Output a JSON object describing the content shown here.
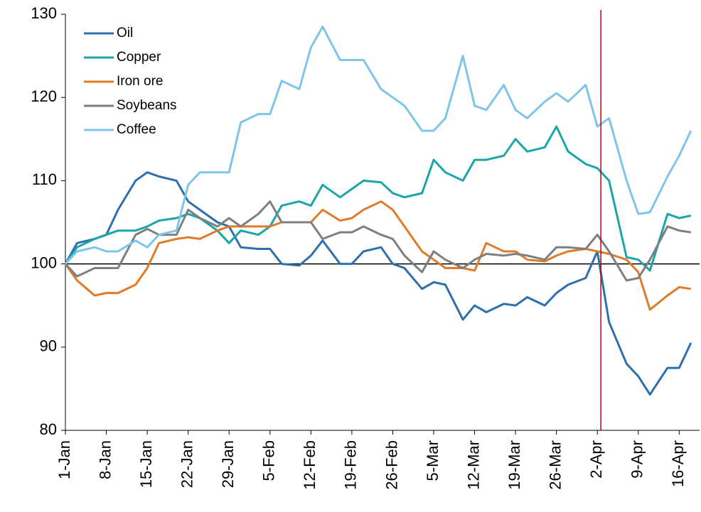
{
  "chart_data": {
    "type": "line",
    "x": [
      0,
      2,
      5,
      7,
      9,
      12,
      14,
      16,
      19,
      21,
      23,
      26,
      28,
      30,
      33,
      35,
      37,
      40,
      42,
      44,
      47,
      49,
      51,
      54,
      56,
      58,
      61,
      63,
      65,
      68,
      70,
      72,
      75,
      77,
      79,
      82,
      84,
      86,
      89,
      91,
      93,
      96,
      98,
      100,
      103,
      105,
      107
    ],
    "series": [
      {
        "name": "Oil",
        "color": "#2e6fad",
        "values": [
          100,
          102.5,
          103,
          103.5,
          106.5,
          110,
          111,
          110.5,
          110,
          107.5,
          106.5,
          105,
          104.5,
          102,
          101.8,
          101.8,
          100,
          99.8,
          101,
          102.8,
          100,
          100,
          101.5,
          102,
          100,
          99.5,
          97,
          97.8,
          97.5,
          93.3,
          95,
          94.2,
          95.2,
          95,
          96,
          95,
          96.5,
          97.5,
          98.3,
          101.5,
          93,
          88,
          86.5,
          84.3,
          87.5,
          87.5,
          90.5
        ]
      },
      {
        "name": "Copper",
        "color": "#1aa6a6",
        "values": [
          100,
          102,
          103,
          103.5,
          104,
          104,
          104.5,
          105.2,
          105.5,
          106,
          105.5,
          104,
          102.5,
          104,
          103.5,
          104.5,
          107,
          107.5,
          107,
          109.5,
          108,
          109,
          110,
          109.8,
          108.5,
          108,
          108.5,
          112.5,
          111,
          110,
          112.5,
          112.5,
          113,
          115,
          113.5,
          114,
          116.5,
          113.5,
          112,
          111.5,
          110,
          100.8,
          100.5,
          99.2,
          106,
          105.5,
          105.8
        ]
      },
      {
        "name": "Iron ore",
        "color": "#e07b2a",
        "values": [
          100,
          98,
          96.2,
          96.5,
          96.5,
          97.5,
          99.5,
          102.5,
          103,
          103.2,
          103,
          104,
          104.5,
          104.5,
          104.5,
          104.5,
          105,
          105,
          105,
          106.5,
          105.2,
          105.5,
          106.5,
          107.5,
          106.5,
          104.5,
          101.5,
          100.5,
          99.5,
          99.5,
          99.2,
          102.5,
          101.5,
          101.5,
          100.5,
          100.3,
          101,
          101.5,
          101.8,
          101.5,
          101.2,
          100.5,
          99,
          94.5,
          96.2,
          97.2,
          97
        ]
      },
      {
        "name": "Soybeans",
        "color": "#7f7f7f",
        "values": [
          100,
          98.5,
          99.5,
          99.5,
          99.5,
          103.5,
          104.2,
          103.5,
          103.5,
          106.5,
          105.5,
          104.5,
          105.5,
          104.5,
          106,
          107.5,
          105,
          105,
          105,
          103,
          103.8,
          103.8,
          104.5,
          103.5,
          103,
          101,
          99,
          101.5,
          100.5,
          99.5,
          100.5,
          101.2,
          101,
          101.2,
          101,
          100.5,
          102,
          102,
          101.8,
          103.5,
          101.5,
          98,
          98.3,
          100.5,
          104.5,
          104,
          103.8
        ]
      },
      {
        "name": "Coffee",
        "color": "#7fc4ea",
        "values": [
          100,
          101.5,
          102,
          101.5,
          101.5,
          102.8,
          102,
          103.5,
          104,
          109.5,
          111,
          111,
          111,
          117,
          118,
          118,
          122,
          121,
          126,
          128.5,
          124.5,
          124.5,
          124.5,
          121,
          120,
          119,
          116,
          116,
          117.5,
          125,
          119,
          118.5,
          121.5,
          118.5,
          117.5,
          119.5,
          120.5,
          119.5,
          121.5,
          116.5,
          117.5,
          110,
          106,
          106.2,
          110.5,
          113,
          116
        ]
      }
    ],
    "xlim": [
      0,
      108
    ],
    "xticks": [
      {
        "value": 0,
        "label": "1-Jan"
      },
      {
        "value": 7,
        "label": "8-Jan"
      },
      {
        "value": 14,
        "label": "15-Jan"
      },
      {
        "value": 21,
        "label": "22-Jan"
      },
      {
        "value": 28,
        "label": "29-Jan"
      },
      {
        "value": 35,
        "label": "5-Feb"
      },
      {
        "value": 42,
        "label": "12-Feb"
      },
      {
        "value": 49,
        "label": "19-Feb"
      },
      {
        "value": 56,
        "label": "26-Feb"
      },
      {
        "value": 63,
        "label": "5-Mar"
      },
      {
        "value": 70,
        "label": "12-Mar"
      },
      {
        "value": 77,
        "label": "19-Mar"
      },
      {
        "value": 84,
        "label": "26-Mar"
      },
      {
        "value": 91,
        "label": "2-Apr"
      },
      {
        "value": 98,
        "label": "9-Apr"
      },
      {
        "value": 105,
        "label": "16-Apr"
      }
    ],
    "ylim": [
      80,
      130
    ],
    "yticks": [
      80,
      90,
      100,
      110,
      120,
      130
    ],
    "baseline": 100,
    "vline": {
      "x": 91.6,
      "color": "#c00000"
    },
    "legend": "upper left"
  }
}
